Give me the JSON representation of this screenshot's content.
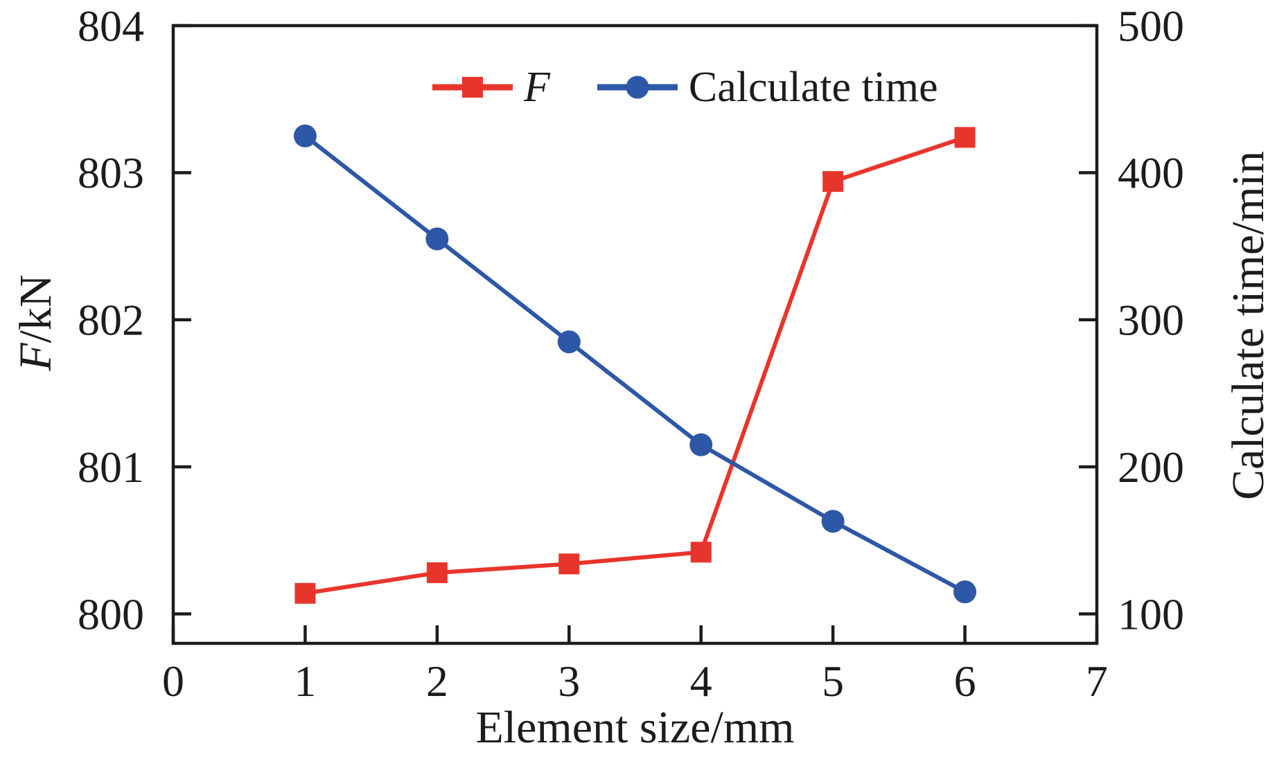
{
  "chart_data": {
    "type": "line",
    "title": "",
    "x": [
      1,
      2,
      3,
      4,
      5,
      6
    ],
    "series": [
      {
        "name": "F",
        "axis": "left",
        "color": "#e8352c",
        "marker": "square",
        "values": [
          800.14,
          800.28,
          800.34,
          800.42,
          802.94,
          803.24
        ]
      },
      {
        "name": "Calculate time",
        "axis": "right",
        "color": "#2d57a7",
        "marker": "circle",
        "values": [
          425,
          355,
          285,
          215,
          163,
          115
        ]
      }
    ],
    "x_axis": {
      "label": "Element size/mm",
      "lim": [
        0,
        7
      ],
      "ticks": [
        0,
        1,
        2,
        3,
        4,
        5,
        6,
        7
      ]
    },
    "left_axis": {
      "label": "F/kN",
      "label_italic": "F",
      "label_rest": "/kN",
      "lim": [
        799.8,
        804.0
      ],
      "ticks": [
        800,
        801,
        802,
        803,
        804
      ]
    },
    "right_axis": {
      "label": "Calculate time/min",
      "lim": [
        80,
        500
      ],
      "ticks": [
        100,
        200,
        300,
        400,
        500
      ]
    },
    "legend": {
      "position": "top-center",
      "entries": [
        "F",
        "Calculate time"
      ]
    },
    "grid": false,
    "frame_color": "#1c1c1c",
    "background": "#ffffff"
  }
}
